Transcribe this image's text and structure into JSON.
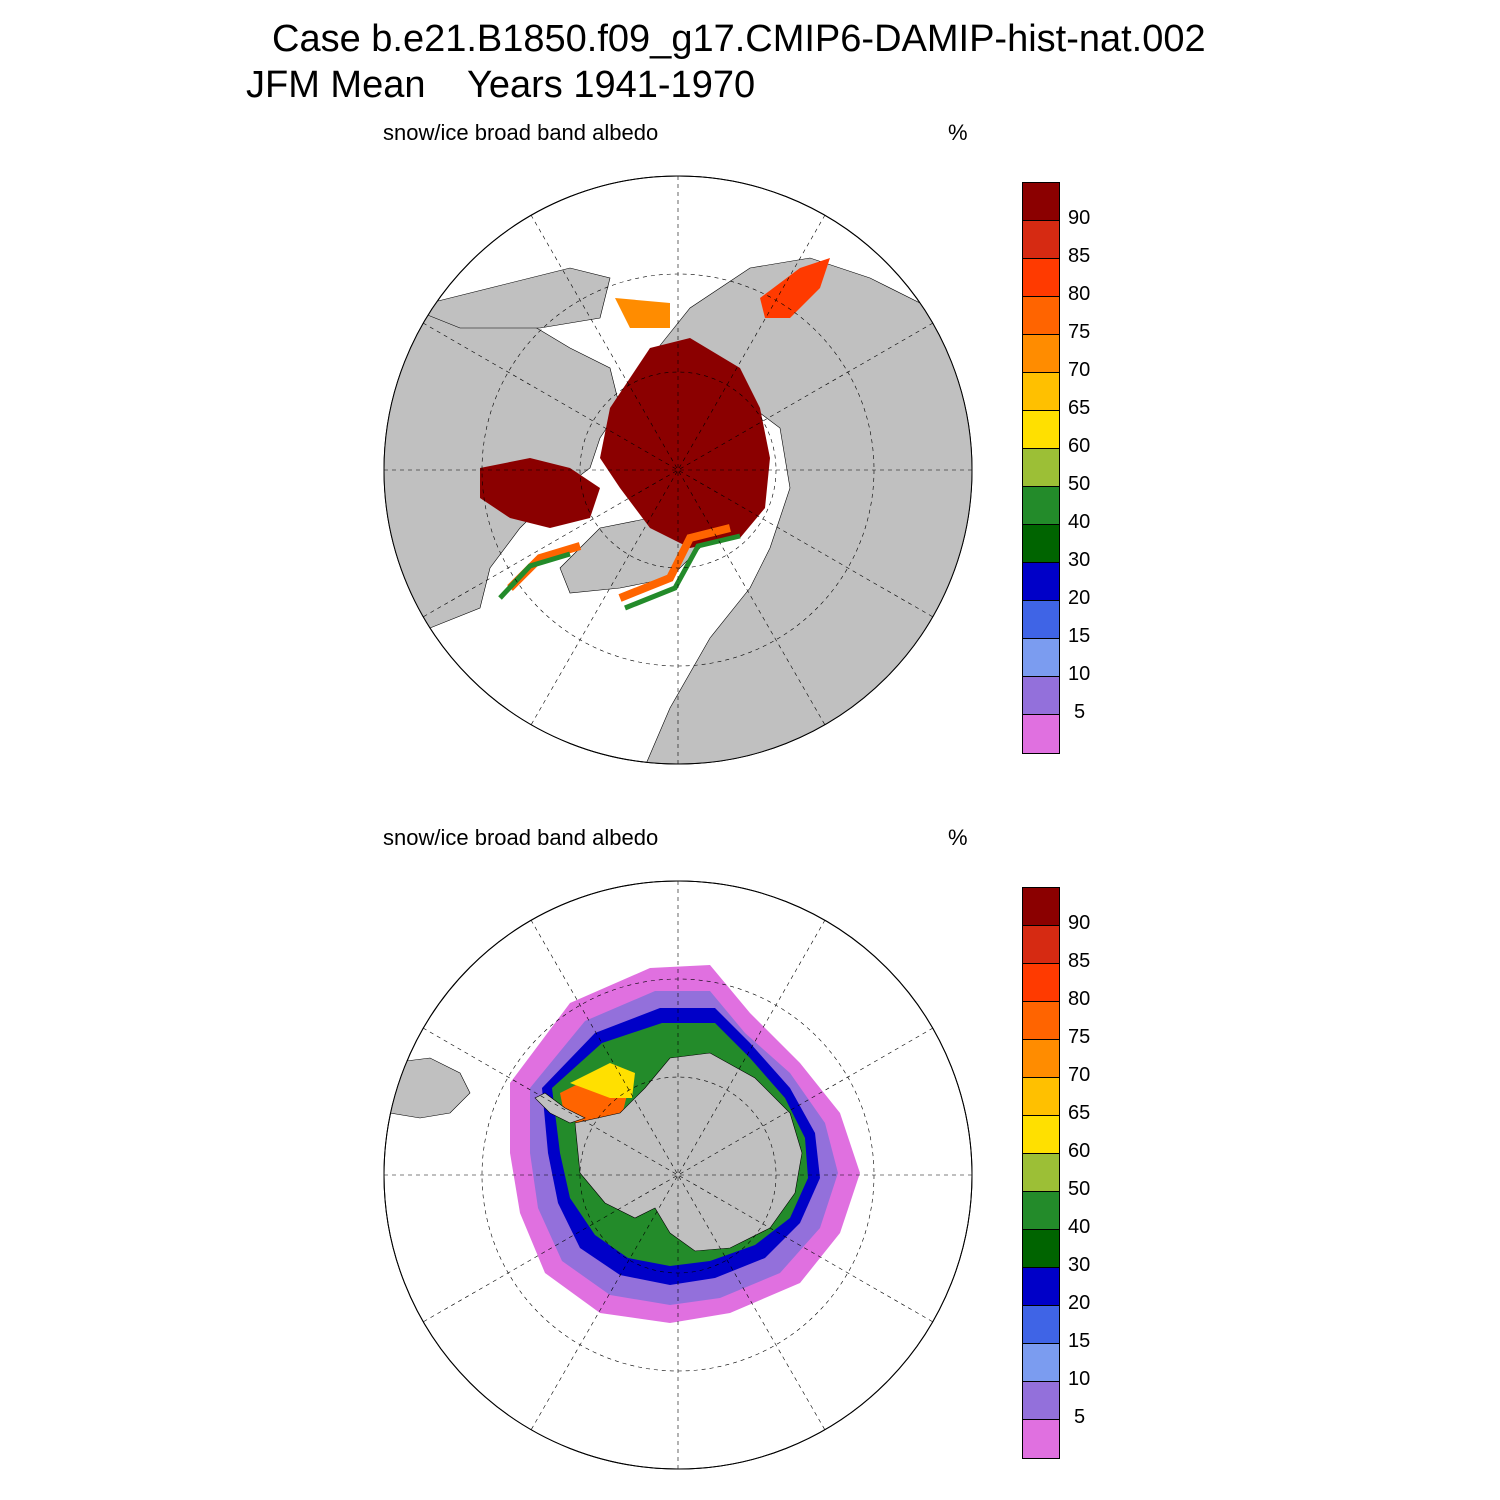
{
  "header": {
    "line1": "Case b.e21.B1850.f09_g17.CMIP6-DAMIP-hist-nat.002",
    "line2_season": "JFM Mean",
    "line2_years": "Years 1941-1970"
  },
  "panels": [
    {
      "id": "north",
      "variable": "snow/ice broad band albedo",
      "units": "%",
      "hemisphere": "Northern"
    },
    {
      "id": "south",
      "variable": "snow/ice broad band albedo",
      "units": "%",
      "hemisphere": "Southern"
    }
  ],
  "colorbar": {
    "levels": [
      "90",
      "85",
      "80",
      "75",
      "70",
      "65",
      "60",
      "50",
      "40",
      "30",
      "20",
      "15",
      "10",
      "5"
    ],
    "colors": [
      "#8b0000",
      "#d62a12",
      "#ff3a00",
      "#ff6400",
      "#ff8c00",
      "#ffc000",
      "#ffe000",
      "#9cbf36",
      "#238b2a",
      "#006400",
      "#0000c8",
      "#3f64e6",
      "#7b9cf0",
      "#9370db",
      "#e070e0"
    ]
  },
  "map_colors": {
    "land": "#c0c0c0",
    "ocean": "#ffffff"
  }
}
